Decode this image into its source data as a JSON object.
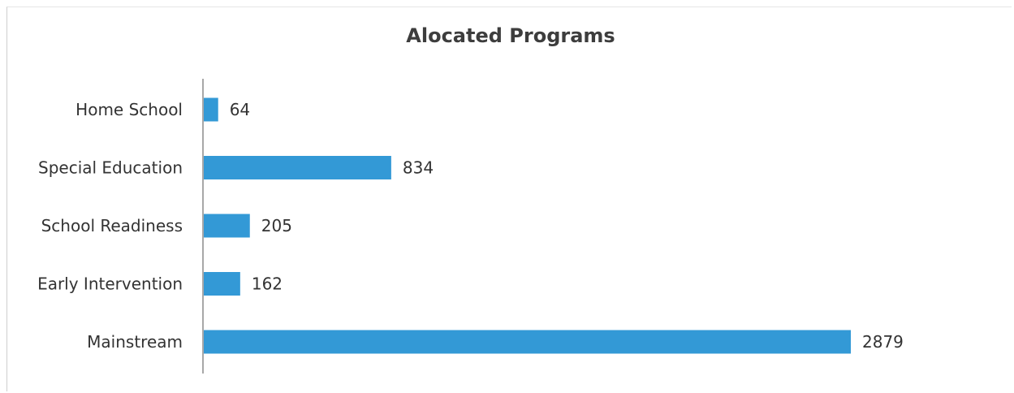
{
  "chart_data": {
    "type": "bar",
    "orientation": "horizontal",
    "title": "Alocated Programs",
    "categories": [
      "Home School",
      "Special Education",
      "School Readiness",
      "Early Intervention",
      "Mainstream"
    ],
    "values": [
      64,
      834,
      205,
      162,
      2879
    ],
    "xlabel": "",
    "ylabel": "",
    "xlim": [
      0,
      2879
    ],
    "grid": false,
    "legend": "none",
    "bar_color": "#3399d6",
    "axis_color": "#8c8c8c",
    "data_labels": true
  }
}
